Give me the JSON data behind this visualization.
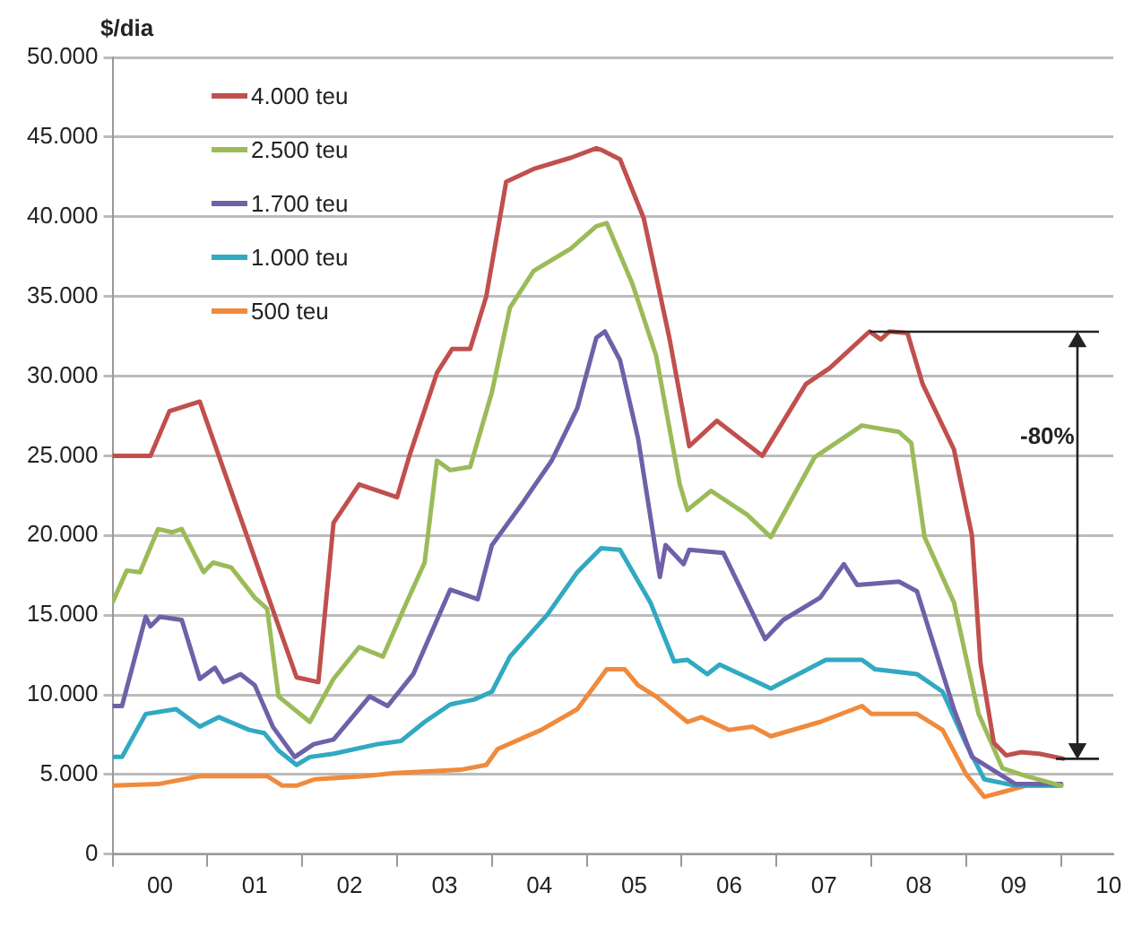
{
  "chart_data": {
    "type": "line",
    "ylabel": "$/dia",
    "xlim": [
      0,
      10.55
    ],
    "xticks": [
      {
        "value": 0,
        "label": null
      },
      {
        "value": 0.5,
        "label": "00"
      },
      {
        "value": 1,
        "label": null
      },
      {
        "value": 1.5,
        "label": "01"
      },
      {
        "value": 2,
        "label": null
      },
      {
        "value": 2.5,
        "label": "02"
      },
      {
        "value": 3,
        "label": null
      },
      {
        "value": 3.5,
        "label": "03"
      },
      {
        "value": 4,
        "label": null
      },
      {
        "value": 4.5,
        "label": "04"
      },
      {
        "value": 5,
        "label": null
      },
      {
        "value": 5.5,
        "label": "05"
      },
      {
        "value": 6,
        "label": null
      },
      {
        "value": 6.5,
        "label": "06"
      },
      {
        "value": 7,
        "label": null
      },
      {
        "value": 7.5,
        "label": "07"
      },
      {
        "value": 8,
        "label": null
      },
      {
        "value": 8.5,
        "label": "08"
      },
      {
        "value": 9,
        "label": null
      },
      {
        "value": 9.5,
        "label": "09"
      },
      {
        "value": 10,
        "label": null
      },
      {
        "value": 10.5,
        "label": "10"
      }
    ],
    "ylim": [
      0,
      50000
    ],
    "yticks": [
      0,
      {
        "value": 5000,
        "label": "5.000"
      },
      {
        "value": 10000,
        "label": "10.000"
      },
      {
        "value": 15000,
        "label": "15.000"
      },
      {
        "value": 20000,
        "label": "20.000"
      },
      {
        "value": 25000,
        "label": "25.000"
      },
      {
        "value": 30000,
        "label": "30.000"
      },
      {
        "value": 35000,
        "label": "35.000"
      },
      {
        "value": 40000,
        "label": "40.000"
      },
      {
        "value": 45000,
        "label": "45.000"
      },
      {
        "value": 50000,
        "label": "50.000"
      }
    ],
    "grid": "y",
    "legend": "top left",
    "marker": "none",
    "line_style": "solid",
    "annotations": [
      "-80%"
    ],
    "series": [
      {
        "name": "4.000 teu",
        "color": "#c0504d",
        "x": [
          0,
          0.4,
          0.6,
          0.92,
          1.94,
          2.17,
          2.33,
          2.6,
          3.0,
          3.13,
          3.42,
          3.58,
          3.77,
          3.94,
          4.15,
          4.44,
          4.83,
          5.1,
          5.15,
          5.35,
          5.6,
          5.87,
          6.08,
          6.37,
          6.85,
          7.31,
          7.56,
          7.98,
          8.1,
          8.19,
          8.38,
          8.54,
          8.87,
          9.06,
          9.15,
          9.29,
          9.42,
          9.58,
          9.77,
          10.02
        ],
        "values": [
          25000,
          25000,
          27800,
          28400,
          11100,
          10800,
          20800,
          23200,
          22400,
          25000,
          30200,
          31700,
          31700,
          35000,
          42200,
          43000,
          43700,
          44300,
          44200,
          43600,
          39900,
          32400,
          25600,
          27200,
          25000,
          29500,
          30500,
          32800,
          32300,
          32800,
          32700,
          29500,
          25400,
          20000,
          12000,
          7000,
          6200,
          6400,
          6300,
          6000
        ]
      },
      {
        "name": "2.500 teu",
        "color": "#9bbb59",
        "x": [
          0,
          0.15,
          0.29,
          0.48,
          0.63,
          0.73,
          0.96,
          1.06,
          1.25,
          1.5,
          1.63,
          1.75,
          2.08,
          2.33,
          2.6,
          2.85,
          3.1,
          3.29,
          3.42,
          3.56,
          3.77,
          4.0,
          4.19,
          4.44,
          4.83,
          5.1,
          5.21,
          5.48,
          5.73,
          5.98,
          6.06,
          6.31,
          6.69,
          6.94,
          7.4,
          7.9,
          8.29,
          8.42,
          8.56,
          8.87,
          9.13,
          9.38,
          9.63,
          10.0
        ],
        "values": [
          15800,
          17800,
          17700,
          20400,
          20200,
          20400,
          17700,
          18300,
          18000,
          16100,
          15400,
          9900,
          8300,
          11000,
          13000,
          12400,
          15800,
          18300,
          24700,
          24100,
          24300,
          29000,
          34300,
          36600,
          38000,
          39400,
          39600,
          35800,
          31300,
          23200,
          21600,
          22800,
          21300,
          19900,
          24900,
          26900,
          26500,
          25800,
          19900,
          15800,
          8800,
          5400,
          4900,
          4300
        ]
      },
      {
        "name": "1.700 teu",
        "color": "#7060a8",
        "x": [
          0,
          0.1,
          0.35,
          0.4,
          0.5,
          0.73,
          0.92,
          1.08,
          1.17,
          1.35,
          1.5,
          1.69,
          1.92,
          2.12,
          2.33,
          2.71,
          2.9,
          3.17,
          3.56,
          3.85,
          4.0,
          4.33,
          4.63,
          4.9,
          5.1,
          5.19,
          5.35,
          5.54,
          5.77,
          5.83,
          6.02,
          6.08,
          6.44,
          6.88,
          7.07,
          7.46,
          7.71,
          7.85,
          8.29,
          8.48,
          8.87,
          9.06,
          9.52,
          10.0
        ],
        "values": [
          9300,
          9300,
          14900,
          14300,
          14900,
          14700,
          11000,
          11700,
          10800,
          11300,
          10600,
          8000,
          6100,
          6900,
          7200,
          9900,
          9300,
          11300,
          16600,
          16000,
          19400,
          22100,
          24700,
          28000,
          32400,
          32800,
          31000,
          26100,
          17400,
          19400,
          18200,
          19100,
          18900,
          13500,
          14700,
          16100,
          18200,
          16900,
          17100,
          16500,
          9100,
          6100,
          4400,
          4400
        ]
      },
      {
        "name": "1.000 teu",
        "color": "#31a9c1",
        "x": [
          0,
          0.1,
          0.35,
          0.67,
          0.92,
          1.12,
          1.44,
          1.6,
          1.75,
          1.94,
          2.08,
          2.33,
          2.79,
          3.04,
          3.29,
          3.56,
          3.81,
          4.0,
          4.19,
          4.58,
          4.9,
          5.15,
          5.35,
          5.67,
          5.92,
          6.06,
          6.27,
          6.4,
          6.94,
          7.52,
          7.9,
          8.04,
          8.48,
          8.75,
          9.0,
          9.19,
          9.52,
          10.0
        ],
        "values": [
          6100,
          6100,
          8800,
          9100,
          8000,
          8600,
          7800,
          7600,
          6500,
          5600,
          6100,
          6300,
          6900,
          7100,
          8300,
          9400,
          9700,
          10200,
          12400,
          15000,
          17700,
          19200,
          19100,
          15800,
          12100,
          12200,
          11300,
          11900,
          10400,
          12200,
          12200,
          11600,
          11300,
          10200,
          6900,
          4700,
          4300,
          4300
        ]
      },
      {
        "name": "500 teu",
        "color": "#f08a3c",
        "x": [
          0,
          0.48,
          0.92,
          1.63,
          1.79,
          1.94,
          2.13,
          2.65,
          2.98,
          3.67,
          3.94,
          4.06,
          4.52,
          4.9,
          5.21,
          5.4,
          5.54,
          5.73,
          6.06,
          6.21,
          6.5,
          6.75,
          6.94,
          7.46,
          7.9,
          8.0,
          8.48,
          8.75,
          9.0,
          9.19,
          9.38,
          9.63,
          10.0
        ],
        "values": [
          4300,
          4400,
          4900,
          4900,
          4300,
          4300,
          4700,
          4900,
          5100,
          5300,
          5600,
          6600,
          7800,
          9100,
          11600,
          11600,
          10600,
          9900,
          8300,
          8600,
          7800,
          8000,
          7400,
          8300,
          9300,
          8800,
          8800,
          7800,
          5000,
          3600,
          3900,
          4300,
          4300
        ]
      }
    ]
  }
}
